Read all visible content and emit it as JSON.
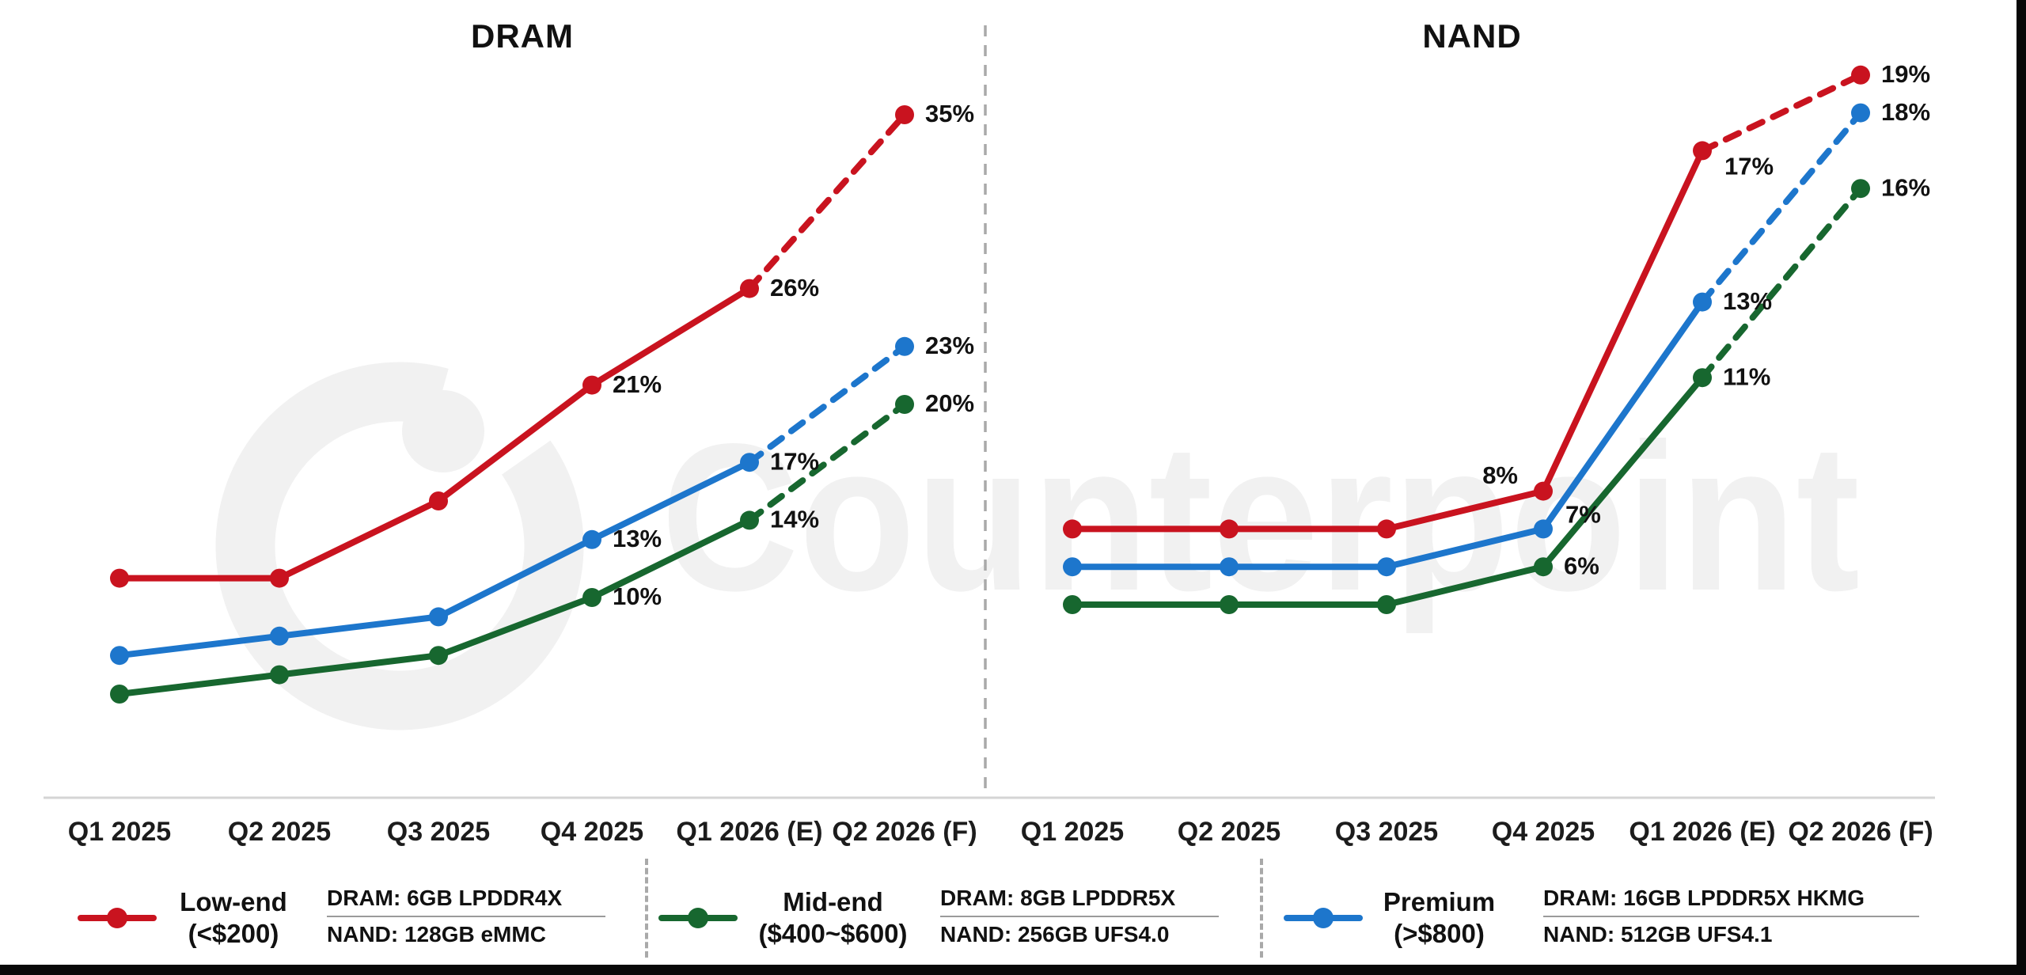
{
  "watermark": {
    "text": "Counterpoint"
  },
  "chart_data": [
    {
      "type": "line",
      "title": "DRAM",
      "categories": [
        "Q1 2025",
        "Q2 2025",
        "Q3 2025",
        "Q4 2025",
        "Q1 2026 (E)",
        "Q2 2026 (F)"
      ],
      "ylabel": "",
      "xlabel": "",
      "ylim": [
        0,
        40
      ],
      "grid": false,
      "unit": "%",
      "forecast_dashed_from_index": 4,
      "series": [
        {
          "name": "Low-end (<$200)",
          "color": "#c9131f",
          "values": [
            11,
            11,
            15,
            21,
            26,
            35
          ],
          "labels": [
            null,
            null,
            null,
            "21%",
            "26%",
            "35%"
          ]
        },
        {
          "name": "Mid-end ($400~$600)",
          "color": "#17672f",
          "values": [
            5,
            6,
            7,
            10,
            14,
            20
          ],
          "labels": [
            null,
            null,
            null,
            "10%",
            "14%",
            "20%"
          ]
        },
        {
          "name": "Premium (>$800)",
          "color": "#1d76cc",
          "values": [
            7,
            8,
            9,
            13,
            17,
            23
          ],
          "labels": [
            null,
            null,
            null,
            "13%",
            "17%",
            "23%"
          ]
        }
      ]
    },
    {
      "type": "line",
      "title": "NAND",
      "categories": [
        "Q1 2025",
        "Q2 2025",
        "Q3 2025",
        "Q4 2025",
        "Q1 2026 (E)",
        "Q2 2026 (F)"
      ],
      "ylabel": "",
      "xlabel": "",
      "ylim": [
        0,
        22
      ],
      "grid": false,
      "unit": "%",
      "forecast_dashed_from_index": 4,
      "series": [
        {
          "name": "Low-end (<$200)",
          "color": "#c9131f",
          "values": [
            7,
            7,
            7,
            8,
            17,
            19
          ],
          "labels": [
            null,
            null,
            null,
            "8%",
            "17%",
            "19%"
          ]
        },
        {
          "name": "Mid-end ($400~$600)",
          "color": "#17672f",
          "values": [
            5,
            5,
            5,
            6,
            11,
            16
          ],
          "labels": [
            null,
            null,
            null,
            "6%",
            "11%",
            "16%"
          ]
        },
        {
          "name": "Premium (>$800)",
          "color": "#1d76cc",
          "values": [
            6,
            6,
            6,
            7,
            13,
            18
          ],
          "labels": [
            null,
            null,
            null,
            "7%",
            "13%",
            "18%"
          ]
        }
      ]
    }
  ],
  "legend": {
    "items": [
      {
        "name": "Low-end",
        "price": "(<$200)",
        "dram_spec": "DRAM: 6GB LPDDR4X",
        "nand_spec": "NAND: 128GB eMMC",
        "color": "#c9131f"
      },
      {
        "name": "Mid-end",
        "price": "($400~$600)",
        "dram_spec": "DRAM: 8GB LPDDR5X",
        "nand_spec": "NAND: 256GB UFS4.0",
        "color": "#17672f"
      },
      {
        "name": "Premium",
        "price": "(>$800)",
        "dram_spec": "DRAM: 16GB LPDDR5X HKMG",
        "nand_spec": "NAND: 512GB UFS4.1",
        "color": "#1d76cc"
      }
    ]
  },
  "colors": {
    "low_end": "#c9131f",
    "mid_end": "#17672f",
    "premium": "#1d76cc",
    "axis_line": "#d5d5d5",
    "divider": "#a9a9a9",
    "watermark": "#f1f1f1",
    "text": "#111111"
  }
}
